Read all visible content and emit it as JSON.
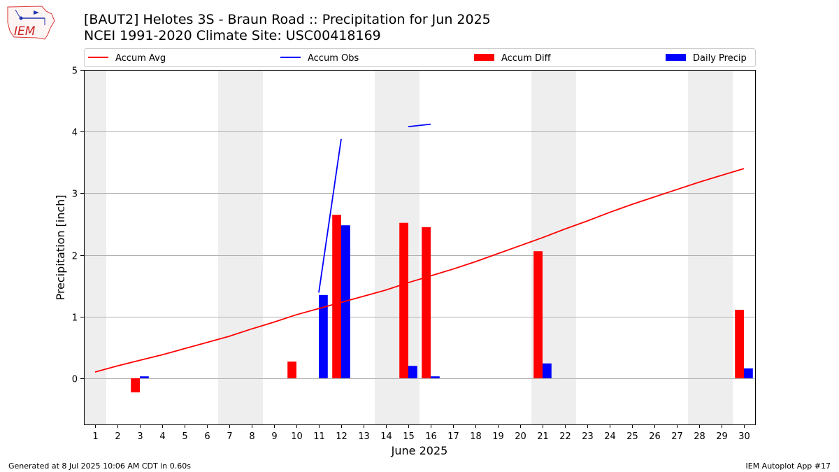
{
  "header": {
    "title_line1": "[BAUT2] Helotes 3S - Braun Road :: Precipitation for Jun 2025",
    "title_line2": "NCEI 1991-2020 Climate Site: USC00418169",
    "logo_text": "IEM"
  },
  "footer": {
    "generated": "Generated at 8 Jul 2025 10:06 AM CDT in 0.60s",
    "app": "IEM Autoplot App #17"
  },
  "colors": {
    "accum_avg": "#ff0000",
    "accum_obs": "#0000ff",
    "accum_diff": "#ff0000",
    "daily_precip": "#0000ff",
    "weekend_shade": "#eeeeee",
    "grid": "#b0b0b0"
  },
  "chart_data": {
    "type": "bar",
    "xlabel": "June 2025",
    "ylabel": "Precipitation [inch]",
    "xlim": [
      0.5,
      30.5
    ],
    "ylim": [
      -0.75,
      5
    ],
    "yticks": [
      0,
      1,
      2,
      3,
      4,
      5
    ],
    "grid": "horizontal",
    "legend_position": "top",
    "legend": [
      "Accum Avg",
      "Accum Obs",
      "Accum Diff",
      "Daily Precip"
    ],
    "x": [
      1,
      2,
      3,
      4,
      5,
      6,
      7,
      8,
      9,
      10,
      11,
      12,
      13,
      14,
      15,
      16,
      17,
      18,
      19,
      20,
      21,
      22,
      23,
      24,
      25,
      26,
      27,
      28,
      29,
      30
    ],
    "weekend_days": [
      1,
      7,
      8,
      14,
      15,
      21,
      22,
      28,
      29
    ],
    "series": [
      {
        "name": "Accum Avg",
        "kind": "line",
        "values": [
          0.1,
          0.2,
          0.29,
          0.38,
          0.48,
          0.58,
          0.68,
          0.8,
          0.91,
          1.03,
          1.13,
          1.23,
          1.33,
          1.43,
          1.55,
          1.66,
          1.77,
          1.89,
          2.02,
          2.15,
          2.28,
          2.42,
          2.55,
          2.69,
          2.82,
          2.94,
          3.06,
          3.18,
          3.29,
          3.4
        ]
      },
      {
        "name": "Accum Obs",
        "kind": "line",
        "segments": [
          {
            "x": [
              11,
              12
            ],
            "values": [
              1.39,
              3.88
            ]
          },
          {
            "x": [
              15,
              16
            ],
            "values": [
              4.08,
              4.12
            ]
          }
        ]
      },
      {
        "name": "Accum Diff",
        "kind": "bar",
        "values": [
          null,
          null,
          -0.23,
          null,
          null,
          null,
          null,
          null,
          null,
          0.27,
          null,
          2.65,
          null,
          null,
          2.52,
          2.45,
          null,
          null,
          null,
          null,
          2.06,
          null,
          null,
          null,
          null,
          null,
          null,
          null,
          null,
          1.11
        ]
      },
      {
        "name": "Daily Precip",
        "kind": "bar",
        "values": [
          null,
          null,
          0.03,
          null,
          null,
          null,
          null,
          null,
          null,
          null,
          1.35,
          2.48,
          null,
          null,
          0.2,
          0.03,
          null,
          null,
          null,
          null,
          0.24,
          null,
          null,
          null,
          null,
          null,
          null,
          null,
          null,
          0.16
        ]
      }
    ]
  }
}
